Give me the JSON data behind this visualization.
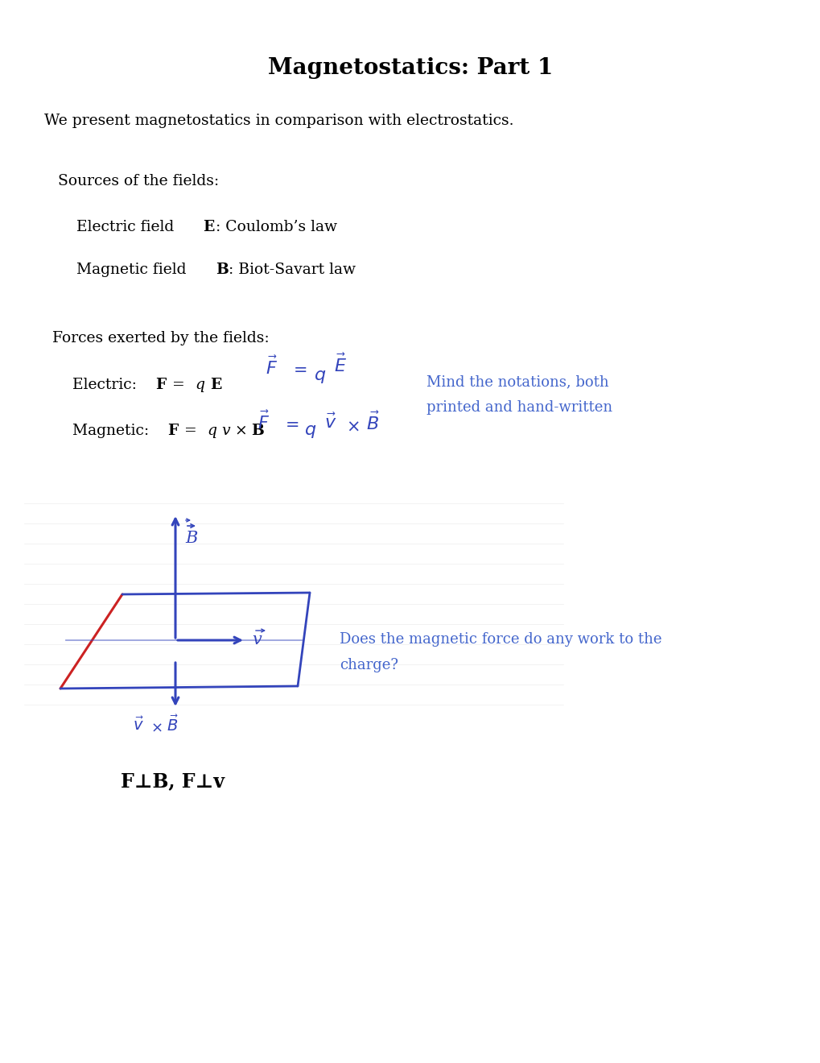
{
  "title": "Magnetostatics: Part 1",
  "subtitle": "We present magnetostatics in comparison with electrostatics.",
  "section1": "Sources of the fields:",
  "section2": "Forces exerted by the fields:",
  "annotation": "Mind the notations, both\nprinted and hand-written",
  "question": "Does the magnetic force do any work to the\ncharge?",
  "perp_statement": "F⊥B, F⊥v",
  "bg_color": "#ffffff",
  "text_color": "#000000",
  "blue_color": "#4466cc",
  "handwritten_color": "#3344bb",
  "red_color": "#cc2222",
  "title_fontsize": 20,
  "body_fontsize": 13.5,
  "section_fontsize": 13.5,
  "item_fontsize": 13.5,
  "annotation_fontsize": 13,
  "perp_fontsize": 17
}
